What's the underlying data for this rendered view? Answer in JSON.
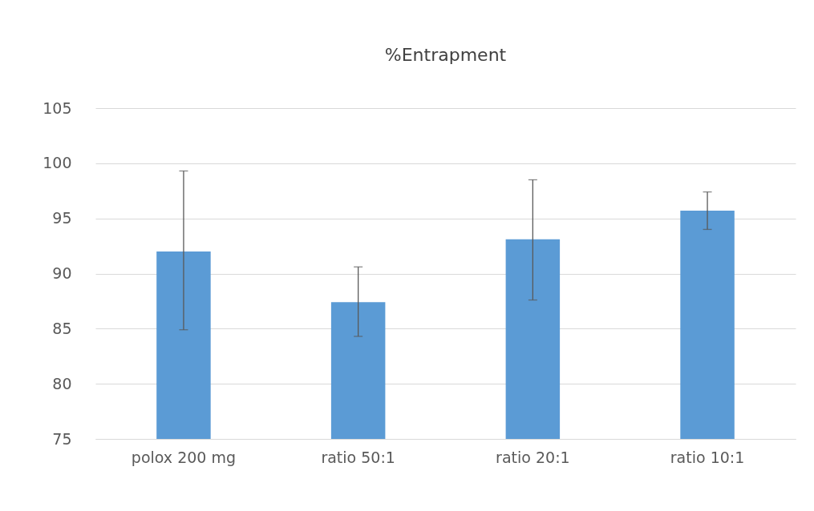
{
  "chart_data": {
    "type": "bar",
    "title": "%Entrapment",
    "categories": [
      "polox 200 mg",
      "ratio 50:1",
      "ratio 20:1",
      "ratio 10:1"
    ],
    "values": [
      92.0,
      87.4,
      93.1,
      95.7
    ],
    "errors": [
      [
        84.9,
        99.3
      ],
      [
        84.3,
        90.6
      ],
      [
        87.6,
        98.5
      ],
      [
        94.0,
        97.4
      ]
    ],
    "color": "#5b9bd5",
    "ylim": [
      75,
      105
    ],
    "yticks": [
      75,
      80,
      85,
      90,
      95,
      100,
      105
    ],
    "grid": "y"
  }
}
